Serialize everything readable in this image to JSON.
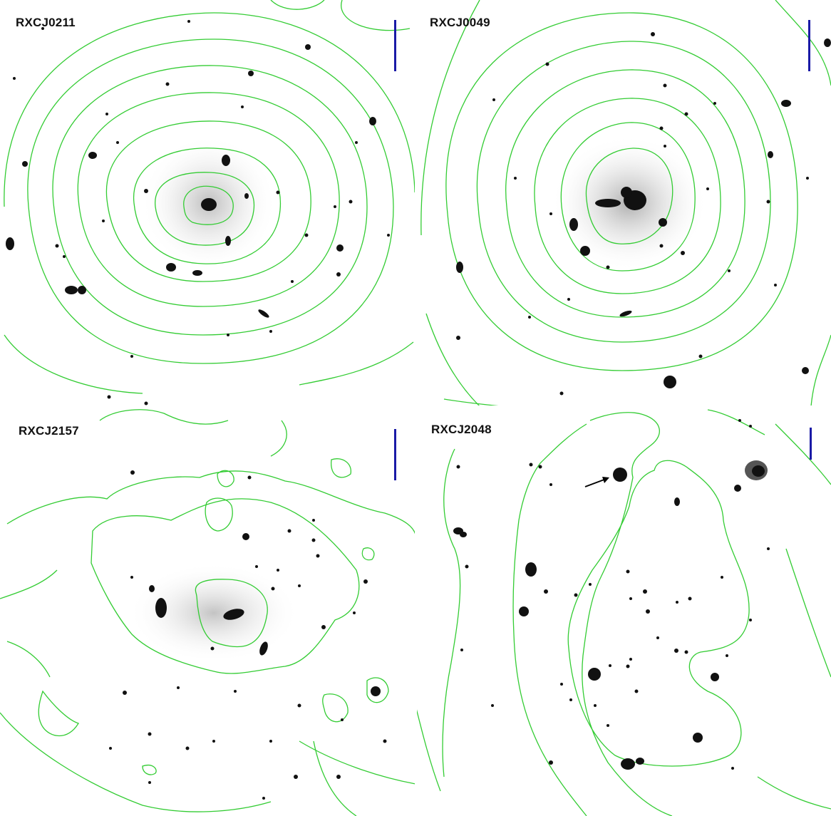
{
  "colors": {
    "contour": "#33cc33",
    "scalebar": "#1a1aa6",
    "galaxy": "#111111",
    "arrow": "#000000"
  },
  "panels": [
    {
      "id": "p1",
      "label": "RXCJ0211"
    },
    {
      "id": "p2",
      "label": "RXCJ0049"
    },
    {
      "id": "p3",
      "label": "RXCJ2157"
    },
    {
      "id": "p4",
      "label": "RXCJ2048"
    }
  ]
}
